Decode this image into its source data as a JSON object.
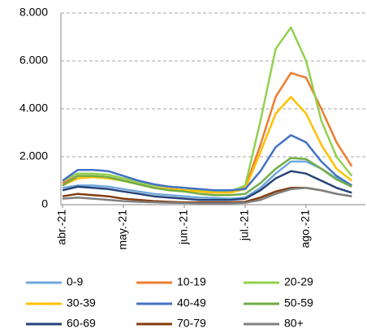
{
  "chart_data": {
    "type": "line",
    "categories": [
      "abr.-21",
      null,
      null,
      null,
      "may.-21",
      null,
      null,
      null,
      "jun.-21",
      null,
      null,
      null,
      "jul.-21",
      null,
      null,
      null,
      "ago.-21",
      null,
      null,
      null
    ],
    "ylim": [
      0,
      8000
    ],
    "yticks": [
      0,
      {
        "value": 2000,
        "label": "2.000"
      },
      {
        "value": 4000,
        "label": "4.000"
      },
      {
        "value": 6000,
        "label": "6.000"
      },
      {
        "value": 8000,
        "label": "8.000"
      }
    ],
    "grid": true,
    "series": [
      {
        "name": "0-9",
        "color": "#6fa8dc",
        "values": [
          700,
          800,
          800,
          750,
          650,
          550,
          450,
          400,
          350,
          300,
          280,
          250,
          300,
          700,
          1300,
          1800,
          1800,
          1500,
          1100,
          800
        ]
      },
      {
        "name": "10-19",
        "color": "#ed7d31",
        "values": [
          900,
          1200,
          1200,
          1150,
          1000,
          850,
          700,
          650,
          600,
          550,
          500,
          500,
          700,
          2500,
          4500,
          5500,
          5300,
          4000,
          2600,
          1600
        ]
      },
      {
        "name": "20-29",
        "color": "#92d050",
        "values": [
          1000,
          1300,
          1300,
          1250,
          1100,
          950,
          800,
          750,
          700,
          600,
          550,
          550,
          800,
          3500,
          6500,
          7400,
          6000,
          3500,
          2000,
          1200
        ]
      },
      {
        "name": "30-39",
        "color": "#ffc000",
        "values": [
          800,
          1100,
          1150,
          1100,
          1000,
          850,
          700,
          650,
          600,
          550,
          500,
          500,
          650,
          2200,
          3800,
          4500,
          3800,
          2500,
          1500,
          1000
        ]
      },
      {
        "name": "40-49",
        "color": "#4472c4",
        "values": [
          1000,
          1450,
          1450,
          1400,
          1200,
          1000,
          850,
          750,
          700,
          650,
          600,
          600,
          650,
          1400,
          2400,
          2900,
          2600,
          1800,
          1200,
          800
        ]
      },
      {
        "name": "50-59",
        "color": "#70ad47",
        "values": [
          800,
          1200,
          1200,
          1150,
          1000,
          850,
          700,
          600,
          550,
          450,
          400,
          400,
          450,
          900,
          1500,
          1950,
          1900,
          1500,
          1050,
          750
        ]
      },
      {
        "name": "60-69",
        "color": "#264478",
        "values": [
          600,
          750,
          700,
          650,
          550,
          450,
          350,
          300,
          250,
          200,
          200,
          200,
          250,
          600,
          1100,
          1400,
          1300,
          1000,
          700,
          500
        ]
      },
      {
        "name": "70-79",
        "color": "#843c0c",
        "values": [
          350,
          450,
          400,
          350,
          250,
          200,
          150,
          120,
          100,
          100,
          100,
          100,
          120,
          300,
          550,
          700,
          700,
          600,
          450,
          350
        ]
      },
      {
        "name": "80+",
        "color": "#7f7f7f",
        "values": [
          250,
          300,
          250,
          200,
          150,
          120,
          100,
          80,
          70,
          60,
          60,
          60,
          80,
          200,
          450,
          650,
          700,
          600,
          450,
          350
        ]
      }
    ]
  }
}
